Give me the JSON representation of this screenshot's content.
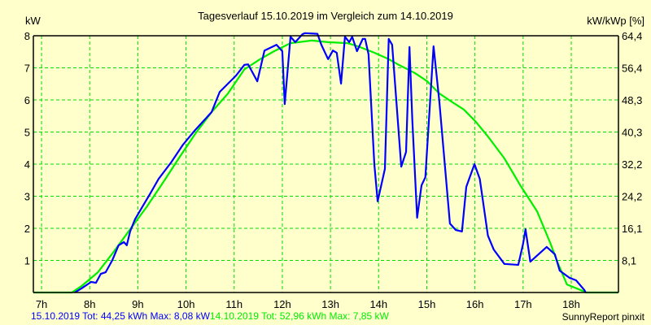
{
  "chart_data": {
    "type": "line",
    "title": "Tagesverlauf 15.10.2019 im Vergleich zum 14.10.2019",
    "ylabel_left": "kW",
    "ylabel_right": "kW/kWp [%]",
    "xlim": [
      6.83,
      18.98
    ],
    "ylim": [
      0,
      8
    ],
    "grid": true,
    "x_ticks": [
      7,
      8,
      9,
      10,
      11,
      12,
      13,
      14,
      15,
      16,
      17,
      18
    ],
    "x_tick_labels": [
      "7h",
      "8h",
      "9h",
      "10h",
      "11h",
      "12h",
      "13h",
      "14h",
      "15h",
      "16h",
      "17h",
      "18h"
    ],
    "y_ticks_left": [
      1,
      2,
      3,
      4,
      5,
      6,
      7,
      8
    ],
    "y_tick_labels_left": [
      "1",
      "2",
      "3",
      "4",
      "5",
      "6",
      "7",
      "8"
    ],
    "y_tick_labels_right": [
      "8,1",
      "16,1",
      "24,2",
      "32,2",
      "40,3",
      "48,3",
      "56,4",
      "64,4"
    ],
    "series": [
      {
        "name": "14.10.2019",
        "color": "#00EE00",
        "legend": "14.10.2019 Tot: 52,96 kWh Max: 7,85 kW",
        "points": [
          [
            6.83,
            0
          ],
          [
            7.63,
            0
          ],
          [
            7.83,
            0.2
          ],
          [
            8.17,
            0.63
          ],
          [
            8.5,
            1.27
          ],
          [
            8.84,
            1.97
          ],
          [
            9.18,
            2.66
          ],
          [
            9.52,
            3.42
          ],
          [
            9.85,
            4.18
          ],
          [
            10.19,
            4.94
          ],
          [
            10.53,
            5.62
          ],
          [
            10.87,
            6.2
          ],
          [
            11.21,
            6.95
          ],
          [
            11.54,
            7.27
          ],
          [
            11.83,
            7.52
          ],
          [
            12.17,
            7.77
          ],
          [
            12.61,
            7.85
          ],
          [
            12.95,
            7.8
          ],
          [
            13.35,
            7.77
          ],
          [
            13.57,
            7.67
          ],
          [
            13.91,
            7.47
          ],
          [
            14.21,
            7.27
          ],
          [
            14.42,
            7.09
          ],
          [
            14.75,
            6.84
          ],
          [
            15.01,
            6.58
          ],
          [
            15.26,
            6.2
          ],
          [
            15.51,
            5.95
          ],
          [
            15.77,
            5.7
          ],
          [
            16.02,
            5.32
          ],
          [
            16.27,
            4.86
          ],
          [
            16.61,
            4.18
          ],
          [
            16.95,
            3.32
          ],
          [
            17.29,
            2.53
          ],
          [
            17.57,
            1.52
          ],
          [
            17.71,
            0.96
          ],
          [
            17.91,
            0.25
          ],
          [
            18.27,
            0.03
          ],
          [
            18.3,
            0
          ],
          [
            18.98,
            0
          ]
        ]
      },
      {
        "name": "15.10.2019",
        "color": "#0000FF",
        "legend": "15.10.2019 Tot: 44,25 kWh Max: 8,08 kW",
        "points": [
          [
            7.69,
            0
          ],
          [
            7.83,
            0.13
          ],
          [
            8.03,
            0.33
          ],
          [
            8.13,
            0.3
          ],
          [
            8.23,
            0.58
          ],
          [
            8.33,
            0.63
          ],
          [
            8.47,
            1.01
          ],
          [
            8.6,
            1.47
          ],
          [
            8.71,
            1.57
          ],
          [
            8.77,
            1.47
          ],
          [
            8.84,
            1.9
          ],
          [
            8.94,
            2.28
          ],
          [
            9.09,
            2.66
          ],
          [
            9.26,
            3.09
          ],
          [
            9.43,
            3.54
          ],
          [
            9.69,
            4.05
          ],
          [
            9.94,
            4.61
          ],
          [
            10.19,
            5.06
          ],
          [
            10.53,
            5.62
          ],
          [
            10.7,
            6.25
          ],
          [
            11.04,
            6.76
          ],
          [
            11.21,
            7.09
          ],
          [
            11.29,
            7.11
          ],
          [
            11.48,
            6.58
          ],
          [
            11.63,
            7.54
          ],
          [
            11.88,
            7.72
          ],
          [
            12.0,
            7.52
          ],
          [
            12.05,
            5.87
          ],
          [
            12.17,
            7.97
          ],
          [
            12.27,
            7.8
          ],
          [
            12.42,
            8.05
          ],
          [
            12.47,
            8.08
          ],
          [
            12.73,
            8.06
          ],
          [
            12.81,
            7.72
          ],
          [
            12.95,
            7.27
          ],
          [
            13.05,
            7.54
          ],
          [
            13.13,
            7.47
          ],
          [
            13.22,
            6.51
          ],
          [
            13.3,
            7.97
          ],
          [
            13.39,
            7.8
          ],
          [
            13.45,
            7.97
          ],
          [
            13.55,
            7.52
          ],
          [
            13.67,
            7.9
          ],
          [
            13.72,
            7.9
          ],
          [
            13.79,
            7.42
          ],
          [
            13.86,
            5.44
          ],
          [
            13.91,
            4.0
          ],
          [
            13.98,
            2.84
          ],
          [
            14.13,
            3.85
          ],
          [
            14.21,
            7.9
          ],
          [
            14.28,
            7.72
          ],
          [
            14.47,
            3.92
          ],
          [
            14.57,
            4.38
          ],
          [
            14.64,
            7.65
          ],
          [
            14.7,
            5.37
          ],
          [
            14.8,
            2.33
          ],
          [
            14.89,
            3.34
          ],
          [
            14.97,
            3.59
          ],
          [
            15.14,
            7.67
          ],
          [
            15.26,
            5.95
          ],
          [
            15.48,
            2.15
          ],
          [
            15.6,
            1.95
          ],
          [
            15.73,
            1.9
          ],
          [
            15.82,
            3.29
          ],
          [
            15.99,
            4.0
          ],
          [
            16.1,
            3.54
          ],
          [
            16.27,
            1.77
          ],
          [
            16.39,
            1.34
          ],
          [
            16.61,
            0.89
          ],
          [
            16.9,
            0.86
          ],
          [
            17.0,
            1.52
          ],
          [
            17.05,
            1.97
          ],
          [
            17.15,
            0.96
          ],
          [
            17.49,
            1.42
          ],
          [
            17.66,
            1.19
          ],
          [
            17.76,
            0.68
          ],
          [
            17.96,
            0.46
          ],
          [
            18.1,
            0.38
          ],
          [
            18.27,
            0.08
          ],
          [
            18.3,
            0
          ]
        ]
      }
    ]
  },
  "footer": {
    "legend_blue": "15.10.2019 Tot: 44,25 kWh Max: 8,08 kW",
    "legend_green": "14.10.2019 Tot: 52,96 kWh Max: 7,85 kW",
    "credit": "SunnyReport pinxit"
  }
}
